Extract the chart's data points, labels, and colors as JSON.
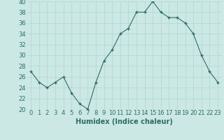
{
  "x": [
    0,
    1,
    2,
    3,
    4,
    5,
    6,
    7,
    8,
    9,
    10,
    11,
    12,
    13,
    14,
    15,
    16,
    17,
    18,
    19,
    20,
    21,
    22,
    23
  ],
  "y": [
    27,
    25,
    24,
    25,
    26,
    23,
    21,
    20,
    25,
    29,
    31,
    34,
    35,
    38,
    38,
    40,
    38,
    37,
    37,
    36,
    34,
    30,
    27,
    25
  ],
  "line_color": "#2d6e63",
  "marker": "+",
  "markersize": 3.5,
  "markeredgewidth": 1.0,
  "bg_color": "#cce8e4",
  "grid_color": "#b0d4cf",
  "xlabel": "Humidex (Indice chaleur)",
  "xlabel_fontsize": 7,
  "tick_fontsize": 6,
  "ylim": [
    20,
    40
  ],
  "yticks": [
    20,
    22,
    24,
    26,
    28,
    30,
    32,
    34,
    36,
    38,
    40
  ],
  "xlim": [
    -0.5,
    23.5
  ]
}
